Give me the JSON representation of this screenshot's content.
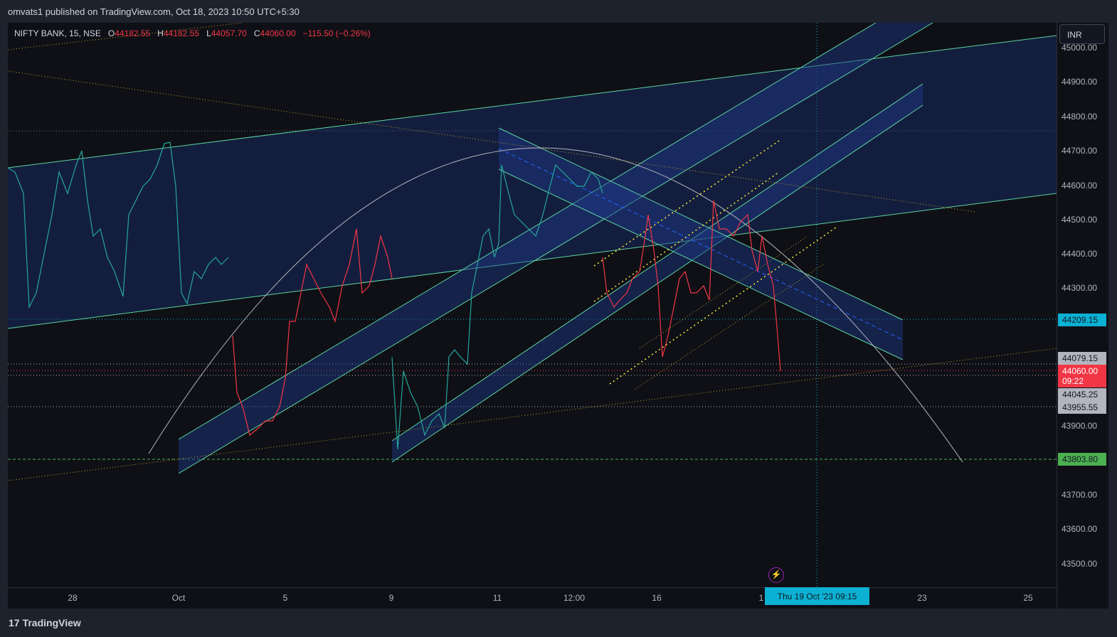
{
  "header": {
    "published_by": "omvats1 published on TradingView.com, Oct 18, 2023 10:50 UTC+5:30"
  },
  "legend": {
    "symbol": "NIFTY BANK, 15, NSE",
    "o_label": "O",
    "o_value": "44182.55",
    "h_label": "H",
    "h_value": "44182.55",
    "l_label": "L",
    "l_value": "44057.70",
    "c_label": "C",
    "c_value": "44060.00",
    "change": "−115.50 (−0.26%)"
  },
  "currency": "INR",
  "price_axis": {
    "ticks": [
      "45000.00",
      "44900.00",
      "44800.00",
      "44700.00",
      "44600.00",
      "44500.00",
      "44400.00",
      "44300.00",
      "43900.00",
      "43700.00",
      "43600.00",
      "43500.00"
    ],
    "labels": {
      "level_44209": "44209.15",
      "level_44079": "44079.15",
      "last_price": "44060.00",
      "countdown": "09:22",
      "level_44045": "44045.25",
      "level_43955": "43955.55",
      "level_43803": "43803.80"
    }
  },
  "time_axis": {
    "ticks": [
      "28",
      "Oct",
      "5",
      "9",
      "11",
      "12:00",
      "16",
      "1",
      "23",
      "25"
    ],
    "cursor_label": "Thu 19 Oct '23   09:15"
  },
  "footer": {
    "brand": "TradingView",
    "logo": "17"
  },
  "colors": {
    "up": "#26a69a",
    "down": "#f23645",
    "cyan": "#0bb1d3",
    "green": "#4caf50",
    "gray": "#787b86",
    "channel": "#1e3a8a",
    "channel_border": "#5dd39e"
  },
  "icons": {
    "replay": "lightning-bolt-icon"
  }
}
